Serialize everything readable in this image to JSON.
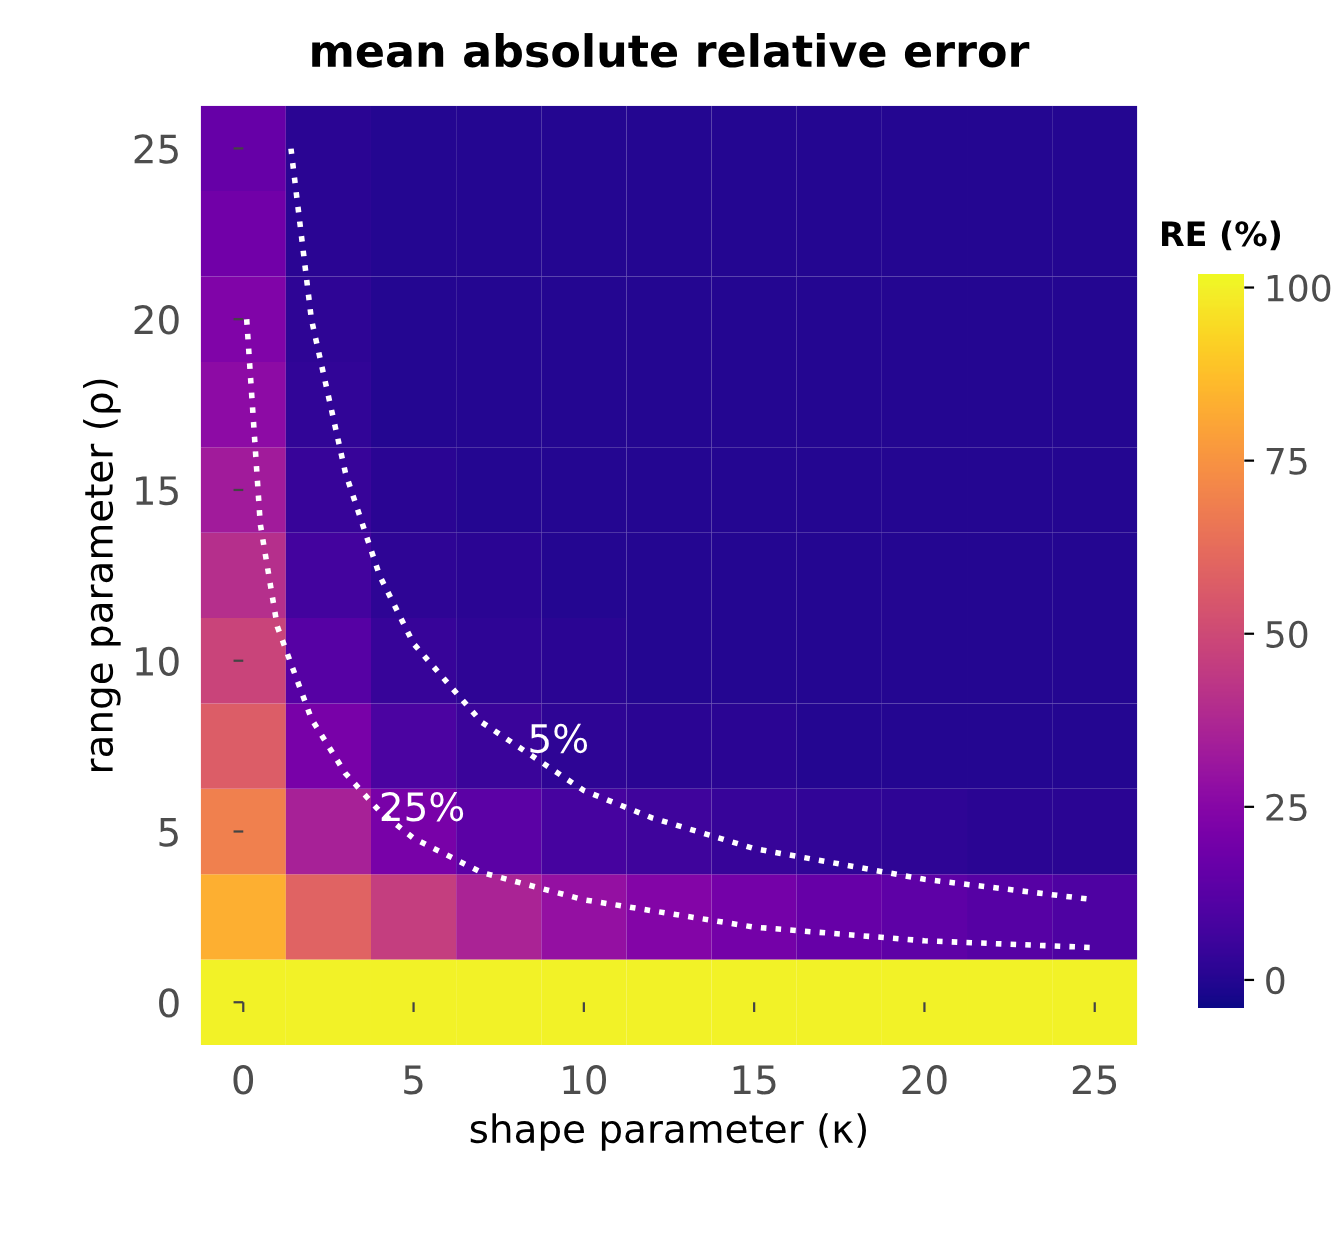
{
  "chart_data": [
    {
      "type": "heatmap",
      "title": "mean absolute relative error",
      "clabel": "RE (%)",
      "categories": [
        null,
        null,
        null,
        null,
        null,
        null,
        null,
        null,
        null,
        null,
        null
      ],
      "y_categories": [
        null,
        null,
        null,
        null,
        null,
        null,
        null,
        null,
        null,
        null,
        null
      ],
      "cells": [
        [
          16,
          1,
          0,
          0,
          0,
          0,
          0,
          0,
          0,
          0,
          0
        ],
        [
          19,
          1,
          0,
          0,
          0,
          0,
          0,
          0,
          0,
          0,
          0
        ],
        [
          23,
          2,
          0,
          0,
          0,
          0,
          0,
          0,
          0,
          0,
          0
        ],
        [
          27,
          3,
          0,
          0,
          0,
          0,
          0,
          0,
          0,
          0,
          0
        ],
        [
          33,
          4,
          1,
          0,
          0,
          0,
          0,
          0,
          0,
          0,
          0
        ],
        [
          40,
          7,
          2,
          1,
          0,
          0,
          0,
          0,
          0,
          0,
          0
        ],
        [
          48,
          12,
          4,
          2,
          1,
          0,
          0,
          0,
          0,
          0,
          0
        ],
        [
          57,
          21,
          9,
          5,
          2,
          1,
          1,
          0,
          0,
          0,
          0
        ],
        [
          69,
          35,
          21,
          13,
          8,
          6,
          4,
          3,
          2,
          1,
          1
        ],
        [
          83,
          59,
          46,
          36,
          29,
          24,
          20,
          16,
          14,
          12,
          10
        ],
        [
          100,
          100,
          100,
          100,
          100,
          100,
          100,
          100,
          100,
          100,
          100
        ]
      ],
      "clim": [
        -4,
        102
      ],
      "cticks": [
        0,
        25,
        50,
        75,
        100
      ]
    },
    {
      "type": "line",
      "xlabel": "shape parameter (κ)",
      "ylabel": "range parameter (ρ)",
      "xlim": [
        0,
        25
      ],
      "ylim": [
        0,
        25
      ],
      "xticks": [
        0,
        5,
        10,
        15,
        20,
        25
      ],
      "yticks": [
        0,
        5,
        10,
        15,
        20,
        25
      ],
      "line_style": "dotted",
      "series": [
        {
          "color": "#ffffff",
          "x": [
            0.1,
            0.5,
            1,
            2,
            3,
            4,
            5,
            7,
            10,
            15,
            20,
            25
          ],
          "values": [
            20,
            14,
            11,
            8.3,
            6.7,
            5.6,
            4.8,
            3.8,
            3,
            2.2,
            1.8,
            1.6
          ]
        },
        {
          "color": "#ffffff",
          "x": [
            1.4,
            2,
            3,
            4,
            5,
            7,
            10,
            12,
            15,
            20,
            25
          ],
          "values": [
            25,
            20,
            15.5,
            12.5,
            10.5,
            8.2,
            6.2,
            5.4,
            4.5,
            3.6,
            3.0
          ]
        }
      ],
      "annotations": [
        "5%",
        "25%"
      ]
    }
  ]
}
